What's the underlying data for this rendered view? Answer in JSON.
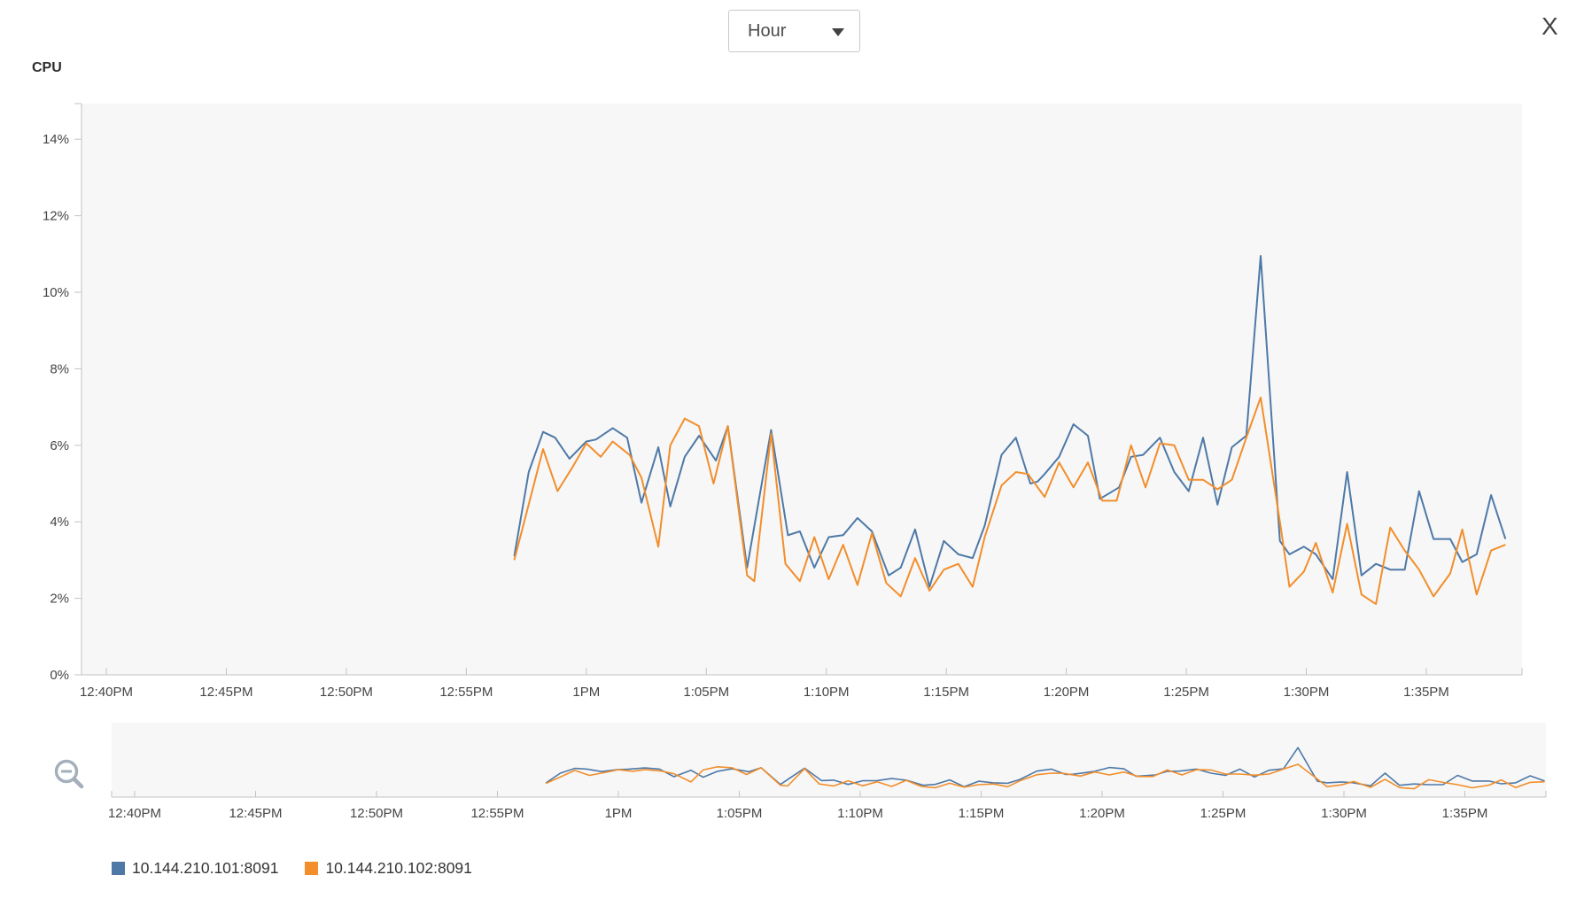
{
  "controls": {
    "granularity_value": "Hour",
    "close_label": "X"
  },
  "icons": {
    "caret_icon": "dropdown caret (filled down triangle)",
    "zoom_out_icon": "magnifying glass with minus sign",
    "close_icon": "X letter glyph"
  },
  "chart_title": "CPU",
  "colors": {
    "series_101": "#4e79a7",
    "series_102": "#f28e2b",
    "axis": "#c0c3c7",
    "plot_bg": "#f7f7f7",
    "tick_text": "#454545"
  },
  "chart_data": {
    "type": "line",
    "title": "CPU",
    "x_unit": "minutes after 12:40PM",
    "xlim_minutes": [
      0,
      59
    ],
    "ylim": [
      0,
      14.9
    ],
    "grid": false,
    "legend_position": "bottom-left",
    "x_ticks": [
      {
        "t": 0,
        "label": "12:40PM"
      },
      {
        "t": 5,
        "label": "12:45PM"
      },
      {
        "t": 10,
        "label": "12:50PM"
      },
      {
        "t": 15,
        "label": "12:55PM"
      },
      {
        "t": 20,
        "label": "1PM"
      },
      {
        "t": 25,
        "label": "1:05PM"
      },
      {
        "t": 30,
        "label": "1:10PM"
      },
      {
        "t": 35,
        "label": "1:15PM"
      },
      {
        "t": 40,
        "label": "1:20PM"
      },
      {
        "t": 45,
        "label": "1:25PM"
      },
      {
        "t": 50,
        "label": "1:30PM"
      },
      {
        "t": 55,
        "label": "1:35PM"
      }
    ],
    "y_ticks": [
      {
        "v": 0,
        "label": "0%"
      },
      {
        "v": 2,
        "label": "2%"
      },
      {
        "v": 4,
        "label": "4%"
      },
      {
        "v": 6,
        "label": "6%"
      },
      {
        "v": 8,
        "label": "8%"
      },
      {
        "v": 10,
        "label": "10%"
      },
      {
        "v": 12,
        "label": "12%"
      },
      {
        "v": 14,
        "label": "14%"
      }
    ],
    "series": [
      {
        "name": "10.144.210.101:8091",
        "color": "#4e79a7",
        "points": [
          [
            17,
            3.1
          ],
          [
            17.6,
            5.3
          ],
          [
            18.2,
            6.35
          ],
          [
            18.7,
            6.2
          ],
          [
            19.3,
            5.65
          ],
          [
            20,
            6.1
          ],
          [
            20.4,
            6.15
          ],
          [
            21.1,
            6.45
          ],
          [
            21.7,
            6.2
          ],
          [
            22.3,
            4.5
          ],
          [
            23,
            5.95
          ],
          [
            23.5,
            4.4
          ],
          [
            24.1,
            5.7
          ],
          [
            24.7,
            6.25
          ],
          [
            25.4,
            5.6
          ],
          [
            25.9,
            6.5
          ],
          [
            26.7,
            2.8
          ],
          [
            27.7,
            6.4
          ],
          [
            28.4,
            3.65
          ],
          [
            28.9,
            3.75
          ],
          [
            29.5,
            2.8
          ],
          [
            30.1,
            3.6
          ],
          [
            30.7,
            3.65
          ],
          [
            31.3,
            4.1
          ],
          [
            31.9,
            3.75
          ],
          [
            32.6,
            2.6
          ],
          [
            33.1,
            2.8
          ],
          [
            33.7,
            3.8
          ],
          [
            34.3,
            2.3
          ],
          [
            34.9,
            3.5
          ],
          [
            35.5,
            3.15
          ],
          [
            36.1,
            3.05
          ],
          [
            36.6,
            3.9
          ],
          [
            37.3,
            5.75
          ],
          [
            37.9,
            6.2
          ],
          [
            38.5,
            5
          ],
          [
            38.8,
            5.05
          ],
          [
            39.1,
            5.25
          ],
          [
            39.7,
            5.7
          ],
          [
            40.3,
            6.55
          ],
          [
            40.9,
            6.25
          ],
          [
            41.4,
            4.6
          ],
          [
            42.2,
            4.9
          ],
          [
            42.7,
            5.7
          ],
          [
            43.2,
            5.75
          ],
          [
            43.9,
            6.2
          ],
          [
            44.5,
            5.3
          ],
          [
            45.1,
            4.8
          ],
          [
            45.7,
            6.2
          ],
          [
            46.3,
            4.45
          ],
          [
            46.9,
            5.95
          ],
          [
            47.5,
            6.25
          ],
          [
            48.1,
            10.95
          ],
          [
            48.9,
            3.5
          ],
          [
            49.3,
            3.15
          ],
          [
            49.9,
            3.35
          ],
          [
            50.4,
            3.15
          ],
          [
            51.1,
            2.5
          ],
          [
            51.7,
            5.3
          ],
          [
            52.3,
            2.6
          ],
          [
            52.9,
            2.9
          ],
          [
            53.5,
            2.75
          ],
          [
            54.1,
            2.75
          ],
          [
            54.7,
            4.8
          ],
          [
            55.3,
            3.55
          ],
          [
            56,
            3.55
          ],
          [
            56.5,
            2.95
          ],
          [
            57.1,
            3.15
          ],
          [
            57.7,
            4.7
          ],
          [
            58.3,
            3.55
          ]
        ]
      },
      {
        "name": "10.144.210.102:8091",
        "color": "#f28e2b",
        "points": [
          [
            17,
            3
          ],
          [
            18.2,
            5.9
          ],
          [
            18.8,
            4.8
          ],
          [
            19.4,
            5.4
          ],
          [
            20,
            6.05
          ],
          [
            20.6,
            5.7
          ],
          [
            21.1,
            6.1
          ],
          [
            21.8,
            5.75
          ],
          [
            22.3,
            5.15
          ],
          [
            23,
            3.35
          ],
          [
            23.5,
            6
          ],
          [
            24.1,
            6.7
          ],
          [
            24.7,
            6.5
          ],
          [
            25.3,
            5
          ],
          [
            25.9,
            6.5
          ],
          [
            26.7,
            2.6
          ],
          [
            27,
            2.45
          ],
          [
            27.7,
            6.3
          ],
          [
            28.3,
            2.9
          ],
          [
            28.9,
            2.45
          ],
          [
            29.5,
            3.6
          ],
          [
            30.1,
            2.5
          ],
          [
            30.7,
            3.4
          ],
          [
            31.3,
            2.35
          ],
          [
            31.9,
            3.7
          ],
          [
            32.5,
            2.4
          ],
          [
            33.1,
            2.05
          ],
          [
            33.7,
            3.05
          ],
          [
            34.3,
            2.2
          ],
          [
            34.9,
            2.75
          ],
          [
            35.5,
            2.9
          ],
          [
            36.1,
            2.3
          ],
          [
            36.6,
            3.6
          ],
          [
            37.3,
            4.95
          ],
          [
            37.9,
            5.3
          ],
          [
            38.4,
            5.25
          ],
          [
            39.1,
            4.65
          ],
          [
            39.7,
            5.55
          ],
          [
            40.3,
            4.9
          ],
          [
            40.9,
            5.55
          ],
          [
            41.5,
            4.55
          ],
          [
            42.1,
            4.55
          ],
          [
            42.7,
            6
          ],
          [
            43.3,
            4.9
          ],
          [
            43.9,
            6.05
          ],
          [
            44.5,
            6
          ],
          [
            45.1,
            5.1
          ],
          [
            45.7,
            5.1
          ],
          [
            46.3,
            4.85
          ],
          [
            46.9,
            5.1
          ],
          [
            47.5,
            6.2
          ],
          [
            48.1,
            7.25
          ],
          [
            48.9,
            4
          ],
          [
            49.3,
            2.3
          ],
          [
            49.9,
            2.7
          ],
          [
            50.4,
            3.45
          ],
          [
            51.1,
            2.15
          ],
          [
            51.7,
            3.95
          ],
          [
            52.3,
            2.1
          ],
          [
            52.9,
            1.85
          ],
          [
            53.5,
            3.85
          ],
          [
            54.1,
            3.25
          ],
          [
            54.7,
            2.75
          ],
          [
            55.3,
            2.05
          ],
          [
            56,
            2.65
          ],
          [
            56.5,
            3.8
          ],
          [
            57.1,
            2.1
          ],
          [
            57.7,
            3.25
          ],
          [
            58.3,
            3.4
          ]
        ]
      }
    ],
    "overview_strip": {
      "description": "Compressed brush/overview strip below the main chart repeating the same two series with the same x tick labels",
      "xlim_minutes": [
        0,
        58.3
      ]
    }
  }
}
